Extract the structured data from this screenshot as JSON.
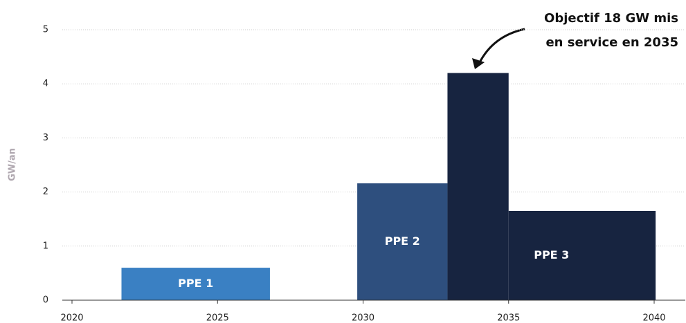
{
  "chart_data": {
    "type": "range_bar",
    "y_label": "GW/an",
    "annotation": [
      "Objectif 18 GW mis",
      "en service en 2035"
    ],
    "xlim": [
      2020,
      2040
    ],
    "xticks": [
      2020,
      2025,
      2030,
      2035,
      2040
    ],
    "ylim": [
      0,
      5
    ],
    "yticks": [
      0,
      1,
      2,
      3,
      4,
      5
    ],
    "grid": true,
    "bars": [
      {
        "name": "PPE 1",
        "color": "#3a80c3",
        "segments": [
          {
            "x": [
              2021.7,
              2026.8
            ],
            "value": 0.6
          }
        ]
      },
      {
        "name": "PPE 2",
        "color": "#2e4f7e",
        "segments": [
          {
            "x": [
              2029.8,
              2032.9
            ],
            "value": 2.16
          }
        ]
      },
      {
        "name": "PPE 3",
        "color": "#172440",
        "segments": [
          {
            "x": [
              2032.9,
              2035
            ],
            "value": 4.2
          },
          {
            "x": [
              2035,
              2040.05
            ],
            "value": 1.65
          }
        ]
      }
    ]
  }
}
